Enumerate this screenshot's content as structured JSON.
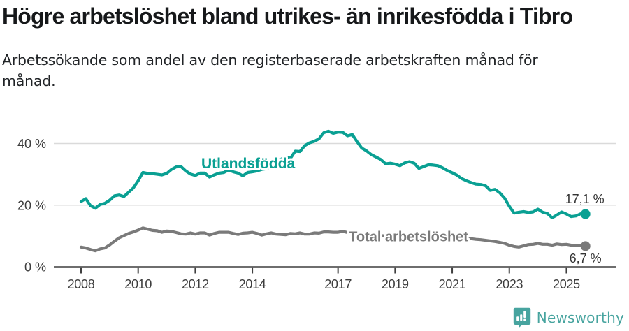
{
  "header": {
    "title": "Högre arbetslöshet bland utrikes- än inrikesfödda i Tibro",
    "subtitle": "Arbetssökande som andel av den registerbaserade arbetskraften månad för månad."
  },
  "footer": {
    "brand": "Newsworthy",
    "logo_icon": "newsworthy-pin-barchart-icon"
  },
  "colors": {
    "accent_teal": "#0aa093",
    "line_gray": "#7a7a7a",
    "label_gray": "#7b7b7b",
    "grid": "#dadada",
    "axis": "#3f3f3f",
    "tick_text": "#3d3d3d",
    "value_text": "#333333",
    "logo_teal": "#47a49f",
    "background": "#ffffff"
  },
  "chart_data": {
    "type": "line",
    "title": "Högre arbetslöshet bland utrikes- än inrikesfödda i Tibro",
    "xlabel": "",
    "ylabel": "",
    "x_start_year": 2008,
    "x_step_years": 0.1666667,
    "x_end_year": 2025.667,
    "ylim": [
      0,
      48
    ],
    "grid": "horizontal gridlines at 20 and 40, bottom axis with year ticks",
    "legend_position": "inline labels on lines",
    "yticks": {
      "values": [
        0,
        20,
        40
      ],
      "labels": [
        "0 %",
        "20 %",
        "40 %"
      ]
    },
    "xticks": {
      "years": [
        2008,
        2010,
        2012,
        2014,
        2017,
        2019,
        2021,
        2023,
        2025
      ],
      "labels": [
        "2008",
        "2010",
        "2012",
        "2014",
        "2017",
        "2019",
        "2021",
        "2023",
        "2025"
      ]
    },
    "series": [
      {
        "name": "Utlandsfödda",
        "color": "#0aa093",
        "end_label": "17,1 %",
        "end_value": 17.1,
        "label_anchor": {
          "year": 2012.21,
          "value": 31.95
        },
        "values": [
          21.2,
          22.1,
          19.8,
          19.0,
          20.2,
          20.6,
          21.6,
          23.0,
          23.3,
          22.8,
          24.2,
          25.6,
          27.9,
          30.6,
          30.3,
          30.2,
          30.0,
          29.8,
          30.3,
          31.6,
          32.4,
          32.5,
          31.1,
          30.1,
          29.6,
          30.4,
          30.4,
          29.1,
          29.8,
          30.4,
          30.6,
          31.4,
          30.8,
          30.4,
          29.5,
          30.6,
          30.8,
          31.1,
          31.6,
          31.8,
          32.9,
          34.2,
          34.9,
          35.6,
          35.2,
          37.5,
          37.4,
          39.3,
          40.2,
          40.7,
          41.5,
          43.5,
          44.0,
          43.3,
          43.7,
          43.6,
          42.5,
          42.9,
          40.6,
          38.5,
          37.6,
          36.4,
          35.6,
          34.8,
          33.4,
          33.6,
          33.3,
          32.8,
          33.7,
          34.1,
          33.6,
          31.9,
          32.5,
          33.1,
          33.0,
          32.8,
          32.1,
          31.2,
          30.5,
          29.7,
          28.6,
          27.9,
          27.3,
          26.8,
          26.7,
          26.3,
          24.8,
          25.1,
          24.0,
          22.3,
          19.6,
          17.4,
          17.7,
          17.9,
          17.6,
          17.8,
          18.7,
          17.7,
          17.3,
          15.9,
          16.8,
          17.8,
          17.1,
          16.3,
          16.5,
          17.2,
          17.1
        ]
      },
      {
        "name": "Total arbetslöshet",
        "color": "#7a7a7a",
        "end_label": "6,7 %",
        "end_value": 6.7,
        "label_anchor": {
          "year": 2017.38,
          "value": 8.3
        },
        "values": [
          6.4,
          6.1,
          5.6,
          5.2,
          5.8,
          6.1,
          7.1,
          8.3,
          9.4,
          10.1,
          10.8,
          11.3,
          11.9,
          12.6,
          12.2,
          11.8,
          11.7,
          11.2,
          11.6,
          11.5,
          11.1,
          10.7,
          10.6,
          11.0,
          10.6,
          11.0,
          11.0,
          10.3,
          10.8,
          11.2,
          11.2,
          11.2,
          10.8,
          10.5,
          10.9,
          11.0,
          11.2,
          10.8,
          10.3,
          10.7,
          11.0,
          10.6,
          10.5,
          10.4,
          10.8,
          10.7,
          11.0,
          10.6,
          10.6,
          11.0,
          10.9,
          11.3,
          11.3,
          11.2,
          11.2,
          11.5,
          11.1,
          11.0,
          10.9,
          10.7,
          10.5,
          10.4,
          10.3,
          10.1,
          10.0,
          9.8,
          9.7,
          9.6,
          9.6,
          9.5,
          9.4,
          9.5,
          9.6,
          9.9,
          10.2,
          10.4,
          10.3,
          10.1,
          9.9,
          9.7,
          9.5,
          9.3,
          9.1,
          8.9,
          8.8,
          8.6,
          8.4,
          8.2,
          7.9,
          7.6,
          7.0,
          6.6,
          6.4,
          6.8,
          7.2,
          7.3,
          7.6,
          7.3,
          7.3,
          7.0,
          7.4,
          7.2,
          7.3,
          7.0,
          6.9,
          6.9,
          6.7
        ]
      }
    ]
  }
}
